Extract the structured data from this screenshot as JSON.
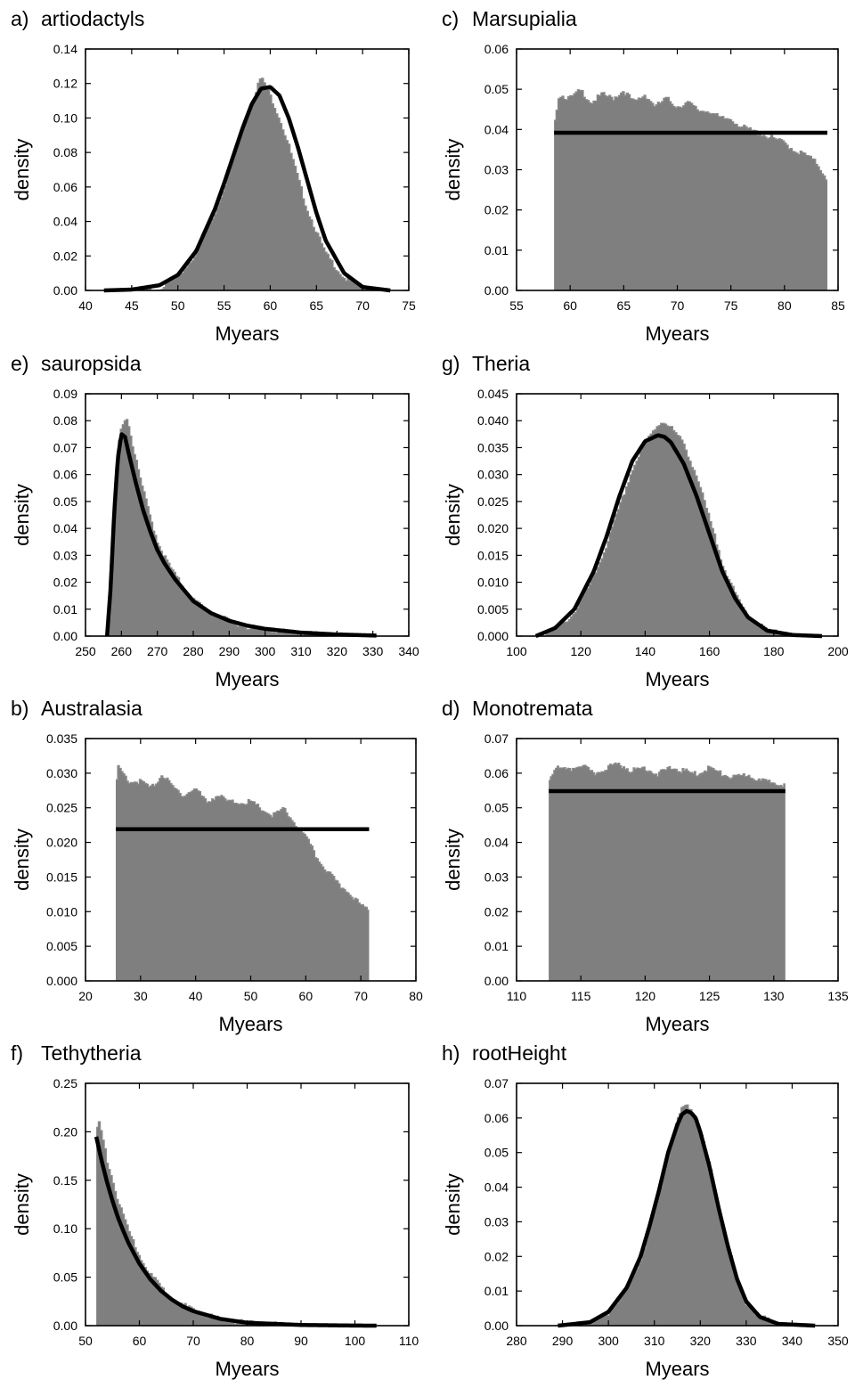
{
  "chart_data": [
    {
      "panel_label": "a)",
      "title": "artiodactyls",
      "type": "area",
      "xlabel": "Myears",
      "ylabel": "density",
      "xlim": [
        40,
        75
      ],
      "ylim": [
        0,
        0.14
      ],
      "xticks": [
        40,
        45,
        50,
        55,
        60,
        65,
        70,
        75
      ],
      "xtick_labels": [
        "40",
        "45",
        "50",
        "55",
        "60",
        "65",
        "70",
        "75"
      ],
      "yticks": [
        0,
        0.02,
        0.04,
        0.06,
        0.08,
        0.1,
        0.12,
        0.14
      ],
      "ytick_labels": [
        "0.00",
        "0.02",
        "0.04",
        "0.06",
        "0.08",
        "0.10",
        "0.12",
        "0.14"
      ],
      "grid": false,
      "histogram": {
        "x": [
          42,
          46,
          48,
          50,
          52,
          54,
          55,
          56,
          57,
          58,
          58.5,
          59,
          59.5,
          60,
          61,
          62,
          63,
          64,
          66,
          68,
          70,
          72,
          73
        ],
        "y": [
          0,
          0.0005,
          0.002,
          0.008,
          0.022,
          0.045,
          0.06,
          0.077,
          0.094,
          0.109,
          0.117,
          0.124,
          0.12,
          0.114,
          0.101,
          0.085,
          0.066,
          0.048,
          0.022,
          0.008,
          0.002,
          0.0004,
          0
        ]
      },
      "fit": {
        "x": [
          42,
          45,
          48,
          50,
          52,
          54,
          55,
          56,
          57,
          58,
          59,
          60,
          61,
          62,
          63,
          64,
          65,
          66,
          68,
          70,
          73
        ],
        "y": [
          0,
          0.0005,
          0.003,
          0.009,
          0.023,
          0.047,
          0.062,
          0.078,
          0.094,
          0.108,
          0.117,
          0.118,
          0.113,
          0.1,
          0.083,
          0.064,
          0.045,
          0.029,
          0.01,
          0.002,
          0
        ]
      }
    },
    {
      "panel_label": "c)",
      "title": "Marsupialia",
      "type": "area",
      "xlabel": "Myears",
      "ylabel": "density",
      "xlim": [
        55,
        85
      ],
      "ylim": [
        0,
        0.06
      ],
      "xticks": [
        55,
        60,
        65,
        70,
        75,
        80,
        85
      ],
      "xtick_labels": [
        "55",
        "60",
        "65",
        "70",
        "75",
        "80",
        "85"
      ],
      "yticks": [
        0,
        0.01,
        0.02,
        0.03,
        0.04,
        0.05,
        0.06
      ],
      "ytick_labels": [
        "0.00",
        "0.01",
        "0.02",
        "0.03",
        "0.04",
        "0.05",
        "0.06"
      ],
      "grid": false,
      "histogram": {
        "x": [
          58.5,
          59,
          60,
          61,
          62,
          63,
          64,
          65,
          66,
          67,
          68,
          69,
          70,
          71,
          72,
          73,
          74,
          75,
          76,
          77,
          78,
          79,
          80,
          81,
          82,
          83,
          84
        ],
        "y": [
          0.042,
          0.049,
          0.048,
          0.05,
          0.047,
          0.049,
          0.048,
          0.05,
          0.047,
          0.049,
          0.046,
          0.048,
          0.046,
          0.047,
          0.045,
          0.045,
          0.043,
          0.043,
          0.041,
          0.04,
          0.039,
          0.038,
          0.037,
          0.035,
          0.034,
          0.032,
          0.028
        ]
      },
      "fit": {
        "x": [
          58.5,
          84
        ],
        "y": [
          0.0392,
          0.0392
        ]
      }
    },
    {
      "panel_label": "e)",
      "title": "sauropsida",
      "type": "area",
      "xlabel": "Myears",
      "ylabel": "density",
      "xlim": [
        250,
        340
      ],
      "ylim": [
        0,
        0.09
      ],
      "xticks": [
        250,
        260,
        270,
        280,
        290,
        300,
        310,
        320,
        330,
        340
      ],
      "xtick_labels": [
        "250",
        "260",
        "270",
        "280",
        "290",
        "300",
        "310",
        "320",
        "330",
        "340"
      ],
      "yticks": [
        0,
        0.01,
        0.02,
        0.03,
        0.04,
        0.05,
        0.06,
        0.07,
        0.08,
        0.09
      ],
      "ytick_labels": [
        "0.00",
        "0.01",
        "0.02",
        "0.03",
        "0.04",
        "0.05",
        "0.06",
        "0.07",
        "0.08",
        "0.09"
      ],
      "grid": false,
      "histogram": {
        "x": [
          256.5,
          257.5,
          258.5,
          259.5,
          260.5,
          261.5,
          262.5,
          264,
          266,
          268,
          270,
          272,
          275,
          280,
          285,
          290,
          295,
          300,
          310,
          320,
          331
        ],
        "y": [
          0,
          0.022,
          0.055,
          0.074,
          0.08,
          0.082,
          0.076,
          0.066,
          0.055,
          0.045,
          0.036,
          0.03,
          0.023,
          0.014,
          0.009,
          0.006,
          0.004,
          0.003,
          0.0015,
          0.0008,
          0
        ]
      },
      "fit": {
        "x": [
          256,
          257,
          258,
          259,
          260,
          261,
          262,
          264,
          266,
          268,
          270,
          272,
          275,
          280,
          285,
          290,
          295,
          300,
          310,
          320,
          331
        ],
        "y": [
          0,
          0.018,
          0.046,
          0.066,
          0.075,
          0.074,
          0.068,
          0.057,
          0.047,
          0.039,
          0.032,
          0.027,
          0.021,
          0.013,
          0.0085,
          0.0057,
          0.0039,
          0.0027,
          0.0013,
          0.0006,
          0.0002
        ]
      }
    },
    {
      "panel_label": "g)",
      "title": "Theria",
      "type": "area",
      "xlabel": "Myears",
      "ylabel": "density",
      "xlim": [
        100,
        200
      ],
      "ylim": [
        0,
        0.045
      ],
      "xticks": [
        100,
        120,
        140,
        160,
        180,
        200
      ],
      "xtick_labels": [
        "100",
        "120",
        "140",
        "160",
        "180",
        "200"
      ],
      "yticks": [
        0,
        0.005,
        0.01,
        0.015,
        0.02,
        0.025,
        0.03,
        0.035,
        0.04,
        0.045
      ],
      "ytick_labels": [
        "0.000",
        "0.005",
        "0.010",
        "0.015",
        "0.020",
        "0.025",
        "0.030",
        "0.035",
        "0.040",
        "0.045"
      ],
      "grid": false,
      "histogram": {
        "x": [
          106,
          112,
          118,
          124,
          128,
          132,
          136,
          140,
          144,
          146,
          148,
          152,
          156,
          160,
          164,
          168,
          172,
          178,
          186,
          195
        ],
        "y": [
          0,
          0.0012,
          0.0045,
          0.011,
          0.017,
          0.024,
          0.031,
          0.036,
          0.0395,
          0.0402,
          0.039,
          0.036,
          0.03,
          0.022,
          0.014,
          0.008,
          0.004,
          0.0013,
          0.0002,
          0
        ]
      },
      "fit": {
        "x": [
          106,
          112,
          118,
          124,
          128,
          132,
          136,
          140,
          144,
          146,
          148,
          152,
          156,
          160,
          164,
          168,
          172,
          178,
          186,
          195
        ],
        "y": [
          0,
          0.0015,
          0.005,
          0.012,
          0.0185,
          0.026,
          0.0325,
          0.0362,
          0.0373,
          0.037,
          0.036,
          0.032,
          0.026,
          0.019,
          0.012,
          0.007,
          0.0035,
          0.001,
          0.0002,
          0
        ]
      }
    },
    {
      "panel_label": "b)",
      "title": "Australasia",
      "type": "area",
      "xlabel": "Myears",
      "ylabel": "density",
      "xlim": [
        20,
        80
      ],
      "ylim": [
        0,
        0.035
      ],
      "xticks": [
        20,
        30,
        40,
        50,
        60,
        70,
        80
      ],
      "xtick_labels": [
        "20",
        "30",
        "40",
        "50",
        "60",
        "70",
        "80"
      ],
      "yticks": [
        0,
        0.005,
        0.01,
        0.015,
        0.02,
        0.025,
        0.03,
        0.035
      ],
      "ytick_labels": [
        "0.000",
        "0.005",
        "0.010",
        "0.015",
        "0.020",
        "0.025",
        "0.030",
        "0.035"
      ],
      "grid": false,
      "histogram": {
        "x": [
          25.5,
          26,
          28,
          30,
          32,
          34,
          36,
          38,
          40,
          42,
          44,
          46,
          48,
          50,
          52,
          54,
          56,
          58,
          60,
          62,
          64,
          66,
          68,
          70,
          71.5
        ],
        "y": [
          0.028,
          0.031,
          0.029,
          0.029,
          0.028,
          0.03,
          0.028,
          0.027,
          0.028,
          0.026,
          0.027,
          0.026,
          0.026,
          0.026,
          0.025,
          0.024,
          0.025,
          0.023,
          0.021,
          0.018,
          0.016,
          0.014,
          0.013,
          0.011,
          0.0105
        ]
      },
      "fit": {
        "x": [
          25.5,
          71.5
        ],
        "y": [
          0.0219,
          0.0219
        ]
      }
    },
    {
      "panel_label": "d)",
      "title": "Monotremata",
      "type": "area",
      "xlabel": "Myears",
      "ylabel": "density",
      "xlim": [
        110,
        135
      ],
      "ylim": [
        0,
        0.07
      ],
      "xticks": [
        110,
        115,
        120,
        125,
        130,
        135
      ],
      "xtick_labels": [
        "110",
        "115",
        "120",
        "125",
        "130",
        "135"
      ],
      "yticks": [
        0,
        0.01,
        0.02,
        0.03,
        0.04,
        0.05,
        0.06,
        0.07
      ],
      "ytick_labels": [
        "0.00",
        "0.01",
        "0.02",
        "0.03",
        "0.04",
        "0.05",
        "0.06",
        "0.07"
      ],
      "grid": false,
      "histogram": {
        "x": [
          112.5,
          113,
          114,
          115,
          116,
          117,
          118,
          119,
          120,
          121,
          122,
          123,
          124,
          125,
          126,
          127,
          128,
          129,
          130,
          130.9
        ],
        "y": [
          0.058,
          0.062,
          0.061,
          0.063,
          0.06,
          0.062,
          0.063,
          0.061,
          0.062,
          0.06,
          0.062,
          0.061,
          0.06,
          0.062,
          0.06,
          0.059,
          0.06,
          0.058,
          0.058,
          0.057
        ]
      },
      "fit": {
        "x": [
          112.5,
          130.9
        ],
        "y": [
          0.0548,
          0.0548
        ]
      }
    },
    {
      "panel_label": "f)",
      "title": "Tethytheria",
      "type": "area",
      "xlabel": "Myears",
      "ylabel": "density",
      "xlim": [
        50,
        110
      ],
      "ylim": [
        0,
        0.25
      ],
      "xticks": [
        50,
        60,
        70,
        80,
        90,
        100,
        110
      ],
      "xtick_labels": [
        "50",
        "60",
        "70",
        "80",
        "90",
        "100",
        "110"
      ],
      "yticks": [
        0,
        0.05,
        0.1,
        0.15,
        0.2,
        0.25
      ],
      "ytick_labels": [
        "0.00",
        "0.05",
        "0.10",
        "0.15",
        "0.20",
        "0.25"
      ],
      "grid": false,
      "histogram": {
        "x": [
          52,
          52.5,
          53,
          54,
          55,
          56,
          57,
          58,
          60,
          62,
          64,
          66,
          68,
          70,
          75,
          80,
          90,
          100,
          104
        ],
        "y": [
          0.2,
          0.213,
          0.2,
          0.172,
          0.152,
          0.132,
          0.114,
          0.099,
          0.074,
          0.055,
          0.041,
          0.031,
          0.023,
          0.017,
          0.008,
          0.004,
          0.001,
          0.0002,
          0
        ]
      },
      "fit": {
        "x": [
          52,
          53,
          54,
          55,
          56,
          57,
          58,
          60,
          62,
          64,
          66,
          68,
          70,
          75,
          80,
          90,
          100,
          104
        ],
        "y": [
          0.195,
          0.17,
          0.148,
          0.129,
          0.112,
          0.098,
          0.085,
          0.064,
          0.048,
          0.036,
          0.027,
          0.02,
          0.015,
          0.007,
          0.003,
          0.0007,
          0.0001,
          0
        ]
      }
    },
    {
      "panel_label": "h)",
      "title": "rootHeight",
      "type": "area",
      "xlabel": "Myears",
      "ylabel": "density",
      "xlim": [
        280,
        350
      ],
      "ylim": [
        0,
        0.07
      ],
      "xticks": [
        280,
        290,
        300,
        310,
        320,
        330,
        340,
        350
      ],
      "xtick_labels": [
        "280",
        "290",
        "300",
        "310",
        "320",
        "330",
        "340",
        "350"
      ],
      "yticks": [
        0,
        0.01,
        0.02,
        0.03,
        0.04,
        0.05,
        0.06,
        0.07
      ],
      "ytick_labels": [
        "0.00",
        "0.01",
        "0.02",
        "0.03",
        "0.04",
        "0.05",
        "0.06",
        "0.07"
      ],
      "grid": false,
      "histogram": {
        "x": [
          289,
          296,
          300,
          304,
          307,
          309,
          311,
          313,
          315,
          316,
          317,
          318,
          319,
          320,
          322,
          324,
          326,
          328,
          330,
          333,
          337,
          345
        ],
        "y": [
          0,
          0.001,
          0.004,
          0.011,
          0.019,
          0.028,
          0.038,
          0.049,
          0.059,
          0.063,
          0.064,
          0.063,
          0.061,
          0.057,
          0.047,
          0.035,
          0.024,
          0.014,
          0.007,
          0.003,
          0.0005,
          0
        ]
      },
      "fit": {
        "x": [
          289,
          296,
          300,
          304,
          307,
          309,
          311,
          313,
          315,
          316,
          317,
          318,
          319,
          320,
          322,
          324,
          326,
          328,
          330,
          333,
          337,
          345
        ],
        "y": [
          0,
          0.001,
          0.004,
          0.011,
          0.02,
          0.029,
          0.039,
          0.05,
          0.058,
          0.061,
          0.062,
          0.0615,
          0.06,
          0.056,
          0.046,
          0.034,
          0.023,
          0.0135,
          0.007,
          0.0025,
          0.0005,
          0
        ]
      }
    }
  ]
}
